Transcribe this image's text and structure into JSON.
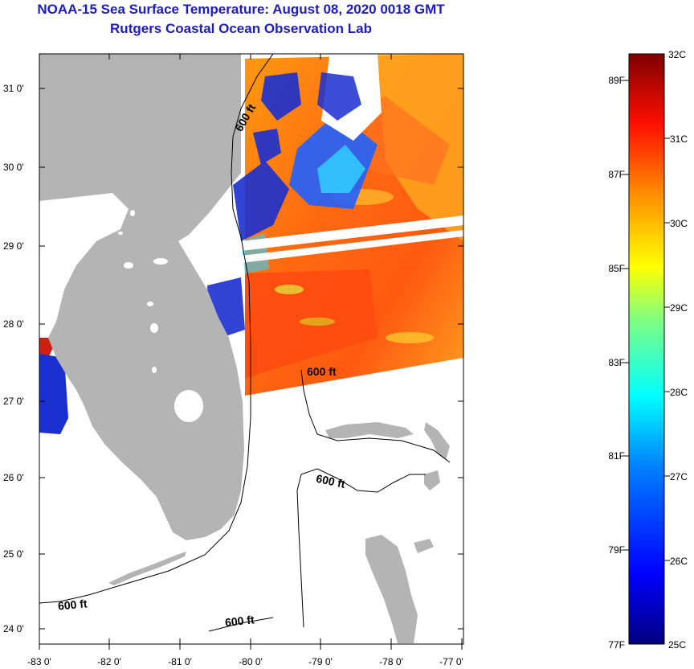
{
  "header": {
    "title": "NOAA-15 Sea Surface Temperature:  August 08, 2020 0018 GMT",
    "subtitle": "Rutgers Coastal Ocean Observation Lab"
  },
  "map": {
    "lat_labels": [
      "31 0'",
      "30 0'",
      "29 0'",
      "28 0'",
      "27 0'",
      "26 0'",
      "25 0'",
      "24 0'"
    ],
    "lon_labels": [
      "-83 0'",
      "-82 0'",
      "-81 0'",
      "-80 0'",
      "-79 0'",
      "-78 0'",
      "-77 0'"
    ],
    "contour_labels": [
      "600 ft",
      "600 ft",
      "600 ft",
      "600 ft",
      "600 ft"
    ],
    "colors": {
      "land": "#b4b4b4",
      "water": "#ffffff",
      "cloud": "#1a2fd0"
    }
  },
  "colorbar": {
    "celsius_labels": [
      "32C",
      "31C",
      "30C",
      "29C",
      "28C",
      "27C",
      "26C",
      "25C"
    ],
    "fahrenheit_labels": [
      "89F",
      "87F",
      "85F",
      "83F",
      "81F",
      "79F",
      "77F"
    ]
  }
}
